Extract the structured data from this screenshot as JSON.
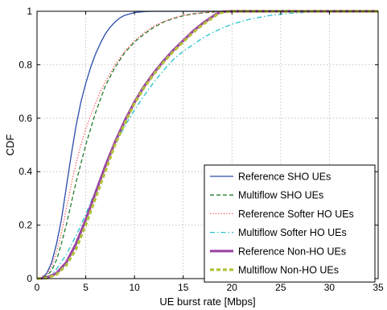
{
  "chart_data": {
    "type": "line",
    "title": "",
    "xlabel": "UE burst rate [Mbps]",
    "ylabel": "CDF",
    "xlim": [
      0,
      35
    ],
    "ylim": [
      0,
      1
    ],
    "xticks": [
      "0",
      "5",
      "10",
      "15",
      "20",
      "25",
      "30",
      "35"
    ],
    "yticks": [
      "0",
      "0.2",
      "0.4",
      "0.6",
      "0.8",
      "1"
    ],
    "grid": true,
    "legend_position": "bottom-right",
    "series": [
      {
        "name": "Reference SHO UEs",
        "color": "#2b4bab",
        "dash": "solid",
        "width": "thin",
        "x": [
          0,
          0.5,
          1,
          1.5,
          2,
          2.5,
          3,
          3.5,
          4,
          4.5,
          5,
          5.5,
          6,
          6.5,
          7,
          7.5,
          8,
          8.5,
          9,
          10,
          11,
          12,
          13,
          15,
          35
        ],
        "y": [
          0,
          0.003,
          0.02,
          0.06,
          0.13,
          0.22,
          0.34,
          0.46,
          0.57,
          0.66,
          0.73,
          0.79,
          0.84,
          0.88,
          0.915,
          0.94,
          0.96,
          0.975,
          0.985,
          0.995,
          0.999,
          1,
          1,
          1,
          1
        ]
      },
      {
        "name": "Multiflow SHO UEs",
        "color": "#237d2f",
        "dash": "dashed",
        "width": "thin",
        "x": [
          0,
          1,
          1.5,
          2,
          2.5,
          3,
          3.5,
          4,
          4.5,
          5,
          5.5,
          6,
          6.5,
          7,
          8,
          9,
          10,
          11,
          12,
          13,
          14,
          15,
          16,
          17,
          18,
          19,
          20,
          22,
          35
        ],
        "y": [
          0,
          0.01,
          0.03,
          0.07,
          0.13,
          0.2,
          0.28,
          0.36,
          0.43,
          0.5,
          0.56,
          0.62,
          0.67,
          0.72,
          0.79,
          0.845,
          0.885,
          0.915,
          0.94,
          0.96,
          0.973,
          0.983,
          0.99,
          0.994,
          0.997,
          0.999,
          1,
          1,
          1
        ]
      },
      {
        "name": "Reference Softer HO UEs",
        "color": "#ff4a4a",
        "dash": "dotted",
        "width": "thin",
        "x": [
          0,
          1,
          1.5,
          2,
          2.5,
          3,
          3.5,
          4,
          4.5,
          5,
          5.5,
          6,
          6.5,
          7,
          8,
          9,
          10,
          11,
          12,
          13,
          14,
          15,
          16,
          17,
          18,
          19,
          20,
          22,
          35
        ],
        "y": [
          0,
          0.015,
          0.045,
          0.1,
          0.17,
          0.26,
          0.35,
          0.43,
          0.5,
          0.56,
          0.61,
          0.655,
          0.7,
          0.735,
          0.8,
          0.85,
          0.89,
          0.92,
          0.945,
          0.962,
          0.975,
          0.985,
          0.991,
          0.995,
          0.997,
          0.999,
          1,
          1,
          1
        ]
      },
      {
        "name": "Multiflow Softer HO UEs",
        "color": "#21c2c9",
        "dash": "dashdot",
        "width": "thin",
        "x": [
          0,
          1,
          1.5,
          2,
          3,
          4,
          5,
          6,
          7,
          8,
          9,
          10,
          11,
          12,
          13,
          14,
          15,
          16,
          17,
          18,
          19,
          20,
          22,
          24,
          26,
          28,
          30,
          35
        ],
        "y": [
          0,
          0.005,
          0.015,
          0.035,
          0.09,
          0.16,
          0.24,
          0.33,
          0.42,
          0.5,
          0.57,
          0.63,
          0.685,
          0.735,
          0.78,
          0.82,
          0.85,
          0.875,
          0.9,
          0.92,
          0.937,
          0.952,
          0.972,
          0.985,
          0.993,
          0.997,
          0.999,
          1
        ]
      },
      {
        "name": "Reference Non-HO UEs",
        "color": "#9c44a4",
        "dash": "solid",
        "width": "thick",
        "x": [
          0,
          1,
          2,
          3,
          4,
          5,
          6,
          7,
          8,
          9,
          10,
          11,
          12,
          13,
          14,
          15,
          16,
          17,
          18,
          18.5,
          19,
          20,
          35
        ],
        "y": [
          0,
          0.003,
          0.02,
          0.06,
          0.13,
          0.22,
          0.32,
          0.42,
          0.51,
          0.59,
          0.66,
          0.72,
          0.77,
          0.815,
          0.855,
          0.89,
          0.925,
          0.955,
          0.98,
          0.992,
          0.998,
          1,
          1
        ]
      },
      {
        "name": "Multiflow Non-HO UEs",
        "color": "#b3c23a",
        "dash": "dashed",
        "width": "thick",
        "x": [
          0,
          1,
          2,
          3,
          4,
          5,
          6,
          7,
          8,
          9,
          10,
          11,
          12,
          13,
          14,
          15,
          16,
          17,
          18,
          18.5,
          19,
          20,
          35
        ],
        "y": [
          0,
          0.002,
          0.015,
          0.05,
          0.11,
          0.2,
          0.3,
          0.4,
          0.5,
          0.58,
          0.655,
          0.715,
          0.765,
          0.81,
          0.85,
          0.885,
          0.92,
          0.95,
          0.975,
          0.988,
          0.996,
          1,
          1
        ]
      }
    ]
  }
}
